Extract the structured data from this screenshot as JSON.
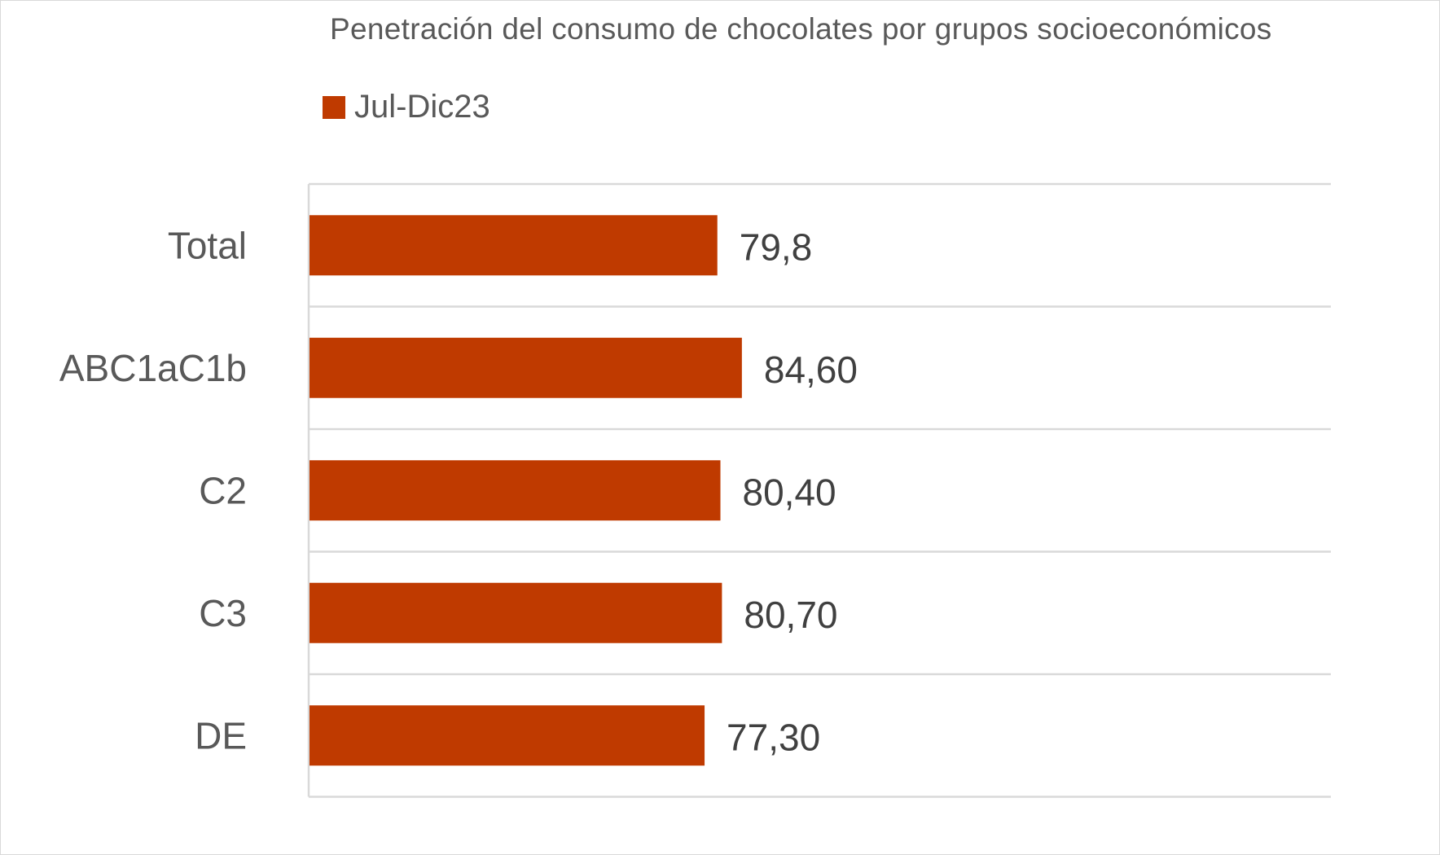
{
  "chart_data": {
    "type": "bar",
    "orientation": "horizontal",
    "title": "Penetración del consumo de chocolates por grupos socioeconómicos",
    "categories": [
      "Total",
      "ABC1aC1b",
      "C2",
      "C3",
      "DE"
    ],
    "series": [
      {
        "name": "Jul-Dic23",
        "values": [
          79.8,
          84.6,
          80.4,
          80.7,
          77.3
        ],
        "labels": [
          "79,8",
          "84,60",
          "80,40",
          "80,70",
          "77,30"
        ],
        "color": "#BF3A00"
      }
    ],
    "xlim": [
      0,
      200
    ],
    "grid": true,
    "legend_position": "top-left"
  }
}
